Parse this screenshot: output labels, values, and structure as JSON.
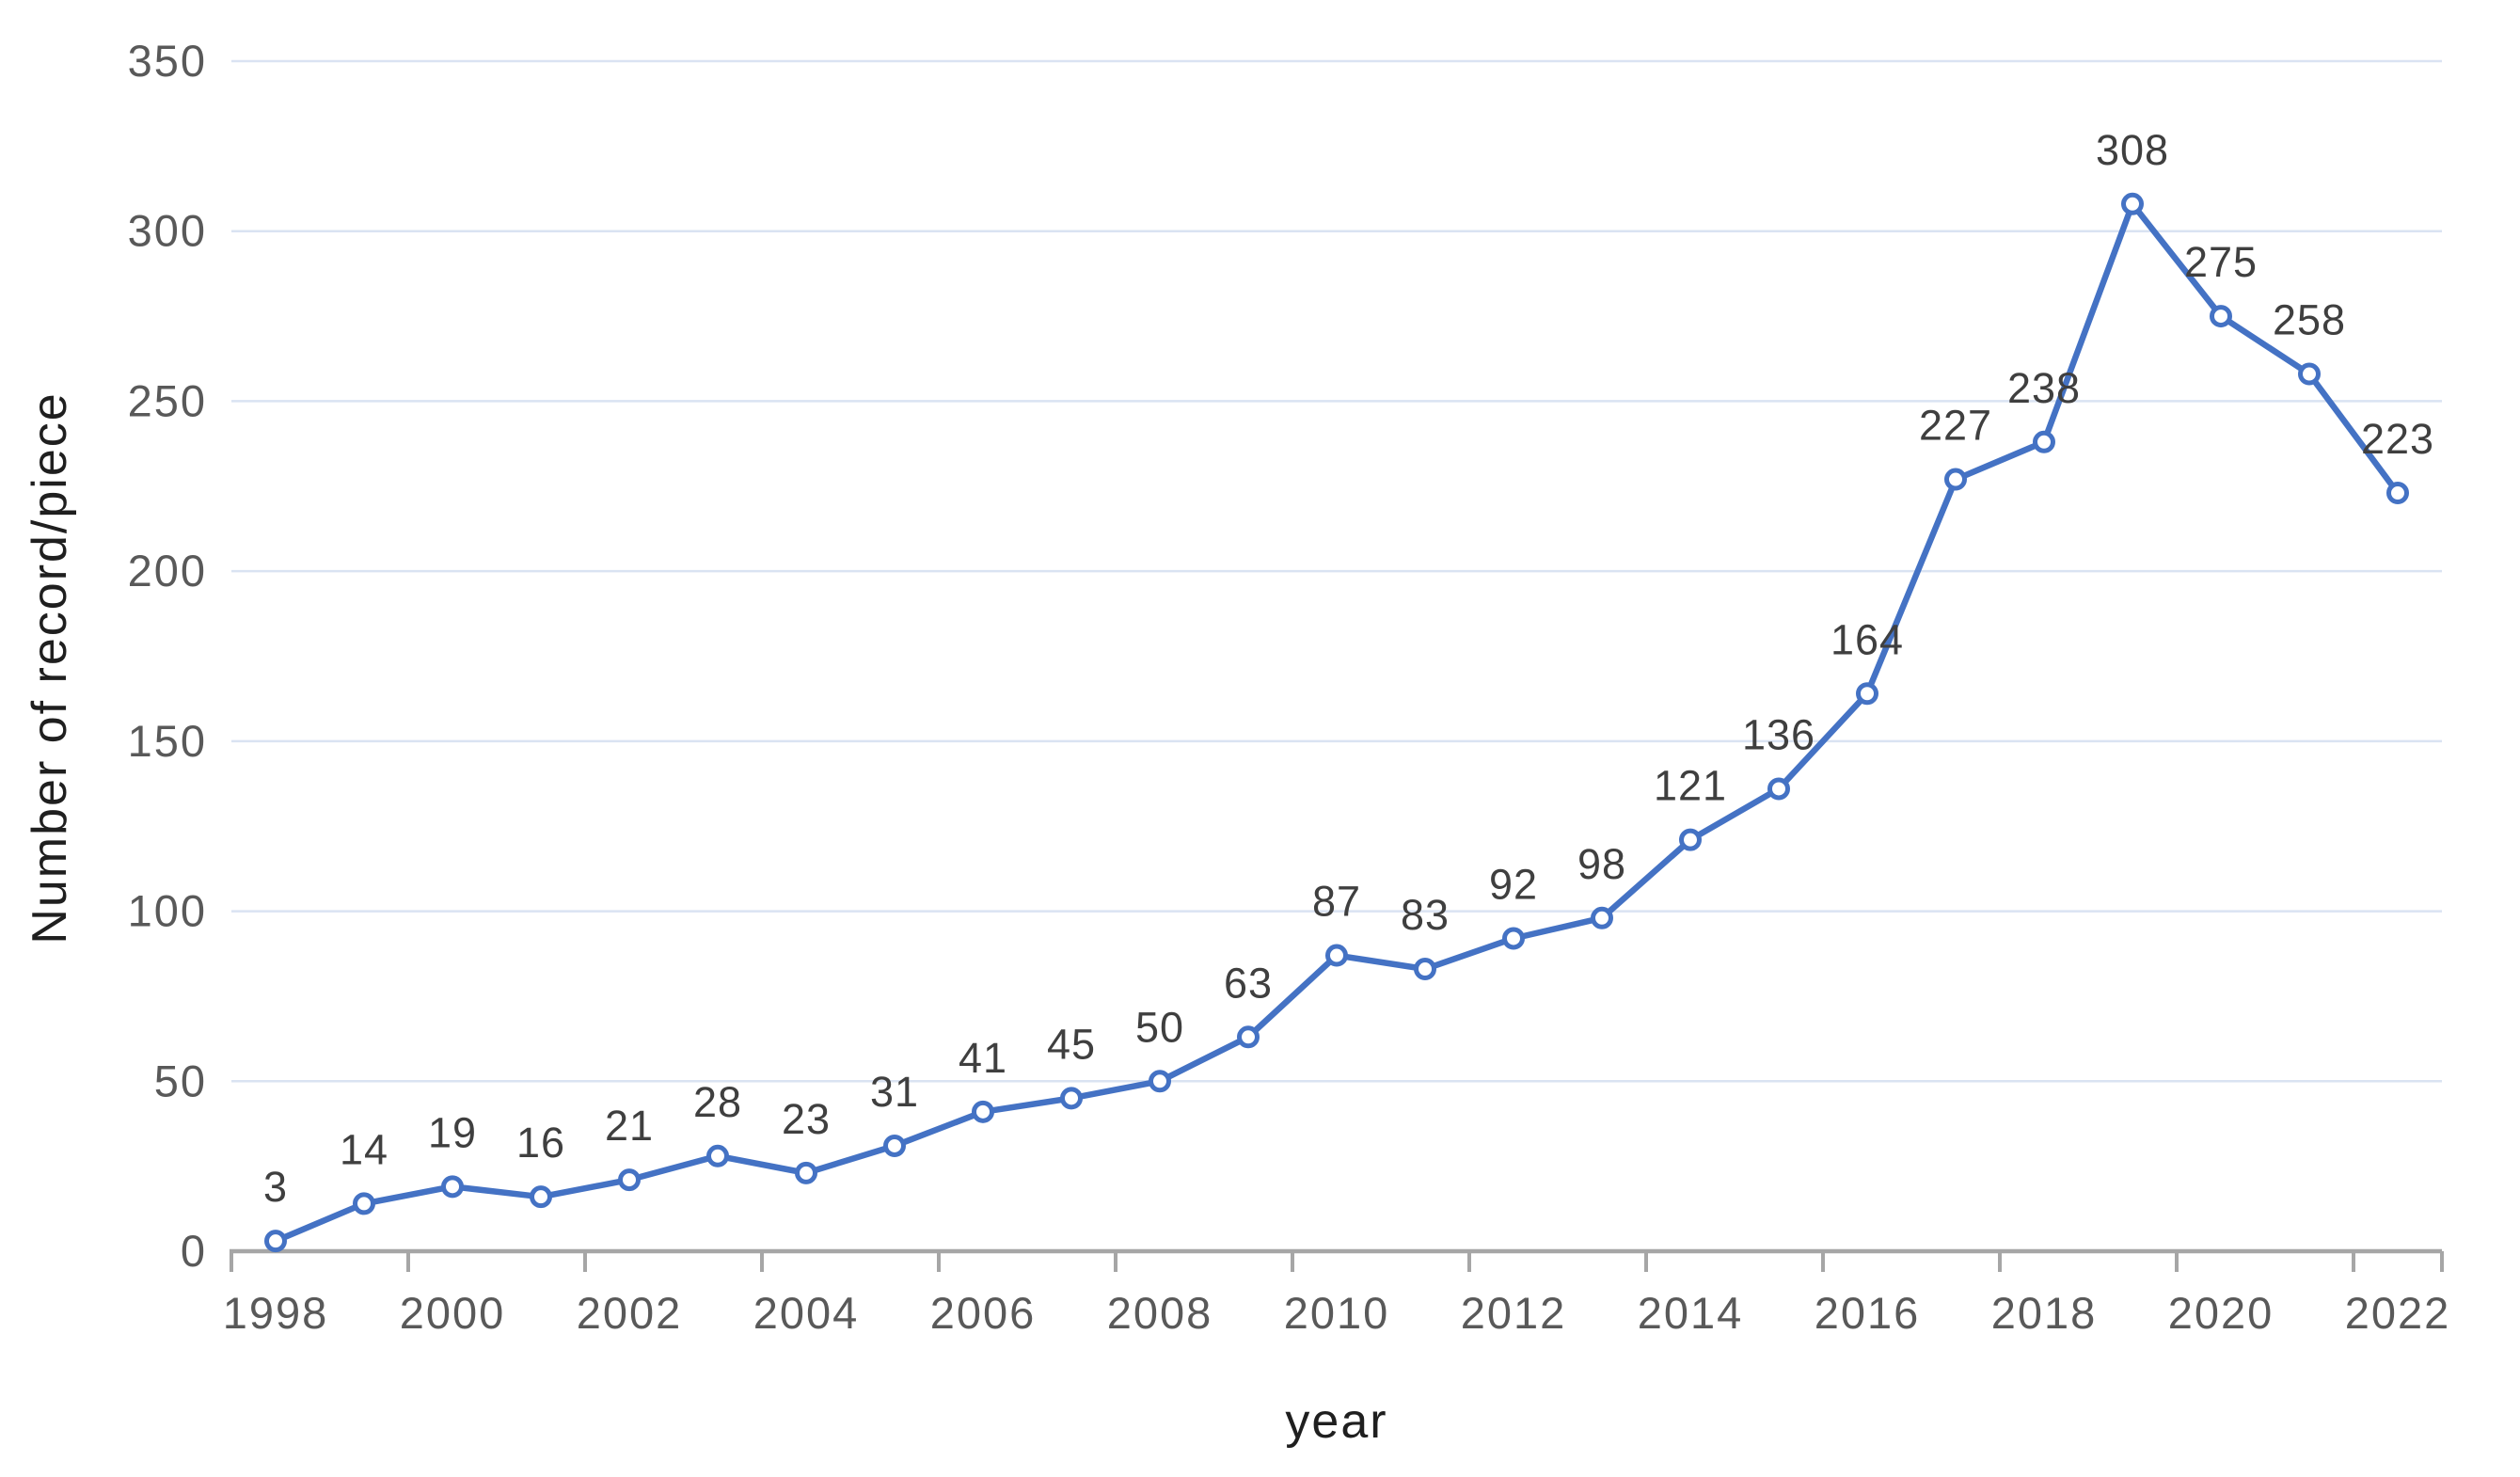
{
  "chart_data": {
    "type": "line",
    "title": "",
    "xlabel": "year",
    "ylabel": "Number of record/piece",
    "x": [
      1998,
      1999,
      2000,
      2001,
      2002,
      2003,
      2004,
      2005,
      2006,
      2007,
      2008,
      2009,
      2010,
      2011,
      2012,
      2013,
      2014,
      2015,
      2016,
      2017,
      2018,
      2019,
      2020,
      2021,
      2022
    ],
    "values": [
      3,
      14,
      19,
      16,
      21,
      28,
      23,
      31,
      41,
      45,
      50,
      63,
      87,
      83,
      92,
      98,
      121,
      136,
      164,
      227,
      238,
      308,
      275,
      258,
      223
    ],
    "ylim": [
      0,
      350
    ],
    "ytick_step": 50,
    "ytick_labels": [
      "0",
      "50",
      "100",
      "150",
      "200",
      "250",
      "300",
      "350"
    ],
    "xtick_labels": [
      "1998",
      "2000",
      "2002",
      "2004",
      "2006",
      "2008",
      "2010",
      "2012",
      "2014",
      "2016",
      "2018",
      "2020",
      "2022"
    ],
    "xtick_label_interval": 2,
    "grid": true,
    "legend_position": "none",
    "data_labels_position": "above",
    "marker": "open-circle",
    "line_color": "#4472C4",
    "marker_fill": "#ffffff",
    "gridline_color": "#dae3f2",
    "axis_line_color": "#a6a6a6",
    "tick_label_color": "#595959",
    "data_label_color": "#3f3f3f"
  }
}
